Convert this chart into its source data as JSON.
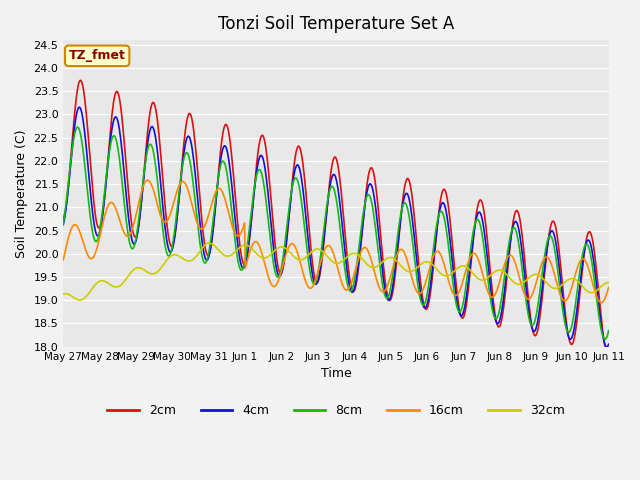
{
  "title": "Tonzi Soil Temperature Set A",
  "xlabel": "Time",
  "ylabel": "Soil Temperature (C)",
  "ylim": [
    18.0,
    24.6
  ],
  "bg_color": "#e8e8e8",
  "annotation": "TZ_fmet",
  "legend": [
    "2cm",
    "4cm",
    "8cm",
    "16cm",
    "32cm"
  ],
  "colors": [
    "#dd1111",
    "#1111dd",
    "#11bb11",
    "#ff8800",
    "#cccc00"
  ],
  "xtick_labels": [
    "May 27",
    "May 28",
    "May 29",
    "May 30",
    "May 31",
    "Jun 1",
    "Jun 2",
    "Jun 3",
    "Jun 4",
    "Jun 5",
    "Jun 6",
    "Jun 7",
    "Jun 8",
    "Jun 9",
    "Jun 10",
    "Jun 11"
  ],
  "n_days": 15,
  "pts_per_day": 48
}
